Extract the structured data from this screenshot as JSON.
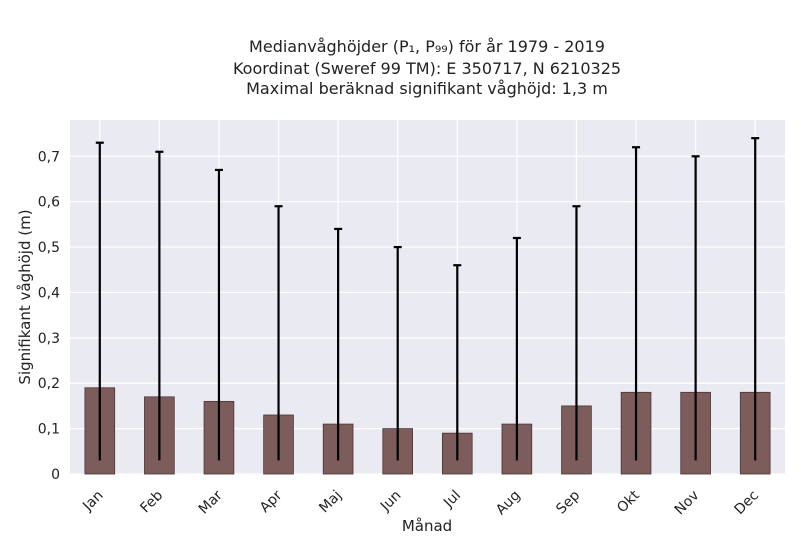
{
  "chart_data": {
    "type": "bar",
    "title_lines": [
      "Medianvåghöjder (P₁, P₉₉) för år 1979 - 2019",
      "Koordinat (Sweref 99 TM): E 350717, N 6210325",
      "Maximal beräknad signifikant våghöjd: 1,3 m"
    ],
    "xlabel": "Månad",
    "ylabel": "Signifikant våghöjd (m)",
    "categories": [
      "Jan",
      "Feb",
      "Mar",
      "Apr",
      "Maj",
      "Jun",
      "Jul",
      "Aug",
      "Sep",
      "Okt",
      "Nov",
      "Dec"
    ],
    "values": [
      0.19,
      0.17,
      0.16,
      0.13,
      0.11,
      0.1,
      0.09,
      0.11,
      0.15,
      0.18,
      0.18,
      0.18
    ],
    "error_low": [
      0.03,
      0.03,
      0.03,
      0.03,
      0.03,
      0.03,
      0.03,
      0.03,
      0.03,
      0.03,
      0.03,
      0.03
    ],
    "error_high": [
      0.73,
      0.71,
      0.67,
      0.59,
      0.54,
      0.5,
      0.46,
      0.52,
      0.59,
      0.72,
      0.7,
      0.74
    ],
    "yticks": [
      "0",
      "0,1",
      "0,2",
      "0,3",
      "0,4",
      "0,5",
      "0,6",
      "0,7"
    ],
    "ylim": [
      0,
      0.78
    ],
    "grid": true,
    "bar_color": "#7d5c5c",
    "background_color": "#eaeaf2"
  }
}
